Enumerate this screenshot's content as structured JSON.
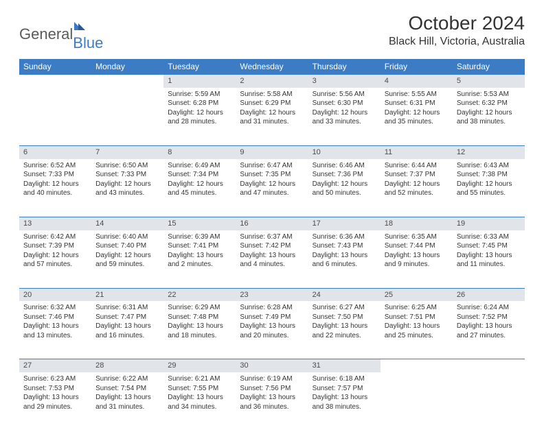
{
  "logo": {
    "text_gray": "General",
    "text_blue": "Blue"
  },
  "title": {
    "month": "October 2024",
    "location": "Black Hill, Victoria, Australia"
  },
  "style": {
    "header_bg": "#3b7cc4",
    "header_fg": "#ffffff",
    "daynum_bg": "#e1e5ea",
    "daynum_fg": "#4a4a4a",
    "row_border": "#3b7cc4",
    "page_bg": "#ffffff",
    "text_color": "#333333",
    "cell_fontsize": 10,
    "header_fontsize": 12,
    "title_fontsize": 28,
    "location_fontsize": 16
  },
  "days_of_week": [
    "Sunday",
    "Monday",
    "Tuesday",
    "Wednesday",
    "Thursday",
    "Friday",
    "Saturday"
  ],
  "weeks": [
    [
      null,
      null,
      {
        "n": "1",
        "sr": "5:59 AM",
        "ss": "6:28 PM",
        "dl": "12 hours and 28 minutes."
      },
      {
        "n": "2",
        "sr": "5:58 AM",
        "ss": "6:29 PM",
        "dl": "12 hours and 31 minutes."
      },
      {
        "n": "3",
        "sr": "5:56 AM",
        "ss": "6:30 PM",
        "dl": "12 hours and 33 minutes."
      },
      {
        "n": "4",
        "sr": "5:55 AM",
        "ss": "6:31 PM",
        "dl": "12 hours and 35 minutes."
      },
      {
        "n": "5",
        "sr": "5:53 AM",
        "ss": "6:32 PM",
        "dl": "12 hours and 38 minutes."
      }
    ],
    [
      {
        "n": "6",
        "sr": "6:52 AM",
        "ss": "7:33 PM",
        "dl": "12 hours and 40 minutes."
      },
      {
        "n": "7",
        "sr": "6:50 AM",
        "ss": "7:33 PM",
        "dl": "12 hours and 43 minutes."
      },
      {
        "n": "8",
        "sr": "6:49 AM",
        "ss": "7:34 PM",
        "dl": "12 hours and 45 minutes."
      },
      {
        "n": "9",
        "sr": "6:47 AM",
        "ss": "7:35 PM",
        "dl": "12 hours and 47 minutes."
      },
      {
        "n": "10",
        "sr": "6:46 AM",
        "ss": "7:36 PM",
        "dl": "12 hours and 50 minutes."
      },
      {
        "n": "11",
        "sr": "6:44 AM",
        "ss": "7:37 PM",
        "dl": "12 hours and 52 minutes."
      },
      {
        "n": "12",
        "sr": "6:43 AM",
        "ss": "7:38 PM",
        "dl": "12 hours and 55 minutes."
      }
    ],
    [
      {
        "n": "13",
        "sr": "6:42 AM",
        "ss": "7:39 PM",
        "dl": "12 hours and 57 minutes."
      },
      {
        "n": "14",
        "sr": "6:40 AM",
        "ss": "7:40 PM",
        "dl": "12 hours and 59 minutes."
      },
      {
        "n": "15",
        "sr": "6:39 AM",
        "ss": "7:41 PM",
        "dl": "13 hours and 2 minutes."
      },
      {
        "n": "16",
        "sr": "6:37 AM",
        "ss": "7:42 PM",
        "dl": "13 hours and 4 minutes."
      },
      {
        "n": "17",
        "sr": "6:36 AM",
        "ss": "7:43 PM",
        "dl": "13 hours and 6 minutes."
      },
      {
        "n": "18",
        "sr": "6:35 AM",
        "ss": "7:44 PM",
        "dl": "13 hours and 9 minutes."
      },
      {
        "n": "19",
        "sr": "6:33 AM",
        "ss": "7:45 PM",
        "dl": "13 hours and 11 minutes."
      }
    ],
    [
      {
        "n": "20",
        "sr": "6:32 AM",
        "ss": "7:46 PM",
        "dl": "13 hours and 13 minutes."
      },
      {
        "n": "21",
        "sr": "6:31 AM",
        "ss": "7:47 PM",
        "dl": "13 hours and 16 minutes."
      },
      {
        "n": "22",
        "sr": "6:29 AM",
        "ss": "7:48 PM",
        "dl": "13 hours and 18 minutes."
      },
      {
        "n": "23",
        "sr": "6:28 AM",
        "ss": "7:49 PM",
        "dl": "13 hours and 20 minutes."
      },
      {
        "n": "24",
        "sr": "6:27 AM",
        "ss": "7:50 PM",
        "dl": "13 hours and 22 minutes."
      },
      {
        "n": "25",
        "sr": "6:25 AM",
        "ss": "7:51 PM",
        "dl": "13 hours and 25 minutes."
      },
      {
        "n": "26",
        "sr": "6:24 AM",
        "ss": "7:52 PM",
        "dl": "13 hours and 27 minutes."
      }
    ],
    [
      {
        "n": "27",
        "sr": "6:23 AM",
        "ss": "7:53 PM",
        "dl": "13 hours and 29 minutes."
      },
      {
        "n": "28",
        "sr": "6:22 AM",
        "ss": "7:54 PM",
        "dl": "13 hours and 31 minutes."
      },
      {
        "n": "29",
        "sr": "6:21 AM",
        "ss": "7:55 PM",
        "dl": "13 hours and 34 minutes."
      },
      {
        "n": "30",
        "sr": "6:19 AM",
        "ss": "7:56 PM",
        "dl": "13 hours and 36 minutes."
      },
      {
        "n": "31",
        "sr": "6:18 AM",
        "ss": "7:57 PM",
        "dl": "13 hours and 38 minutes."
      },
      null,
      null
    ]
  ],
  "labels": {
    "sunrise_prefix": "Sunrise: ",
    "sunset_prefix": "Sunset: ",
    "daylight_prefix": "Daylight: "
  }
}
